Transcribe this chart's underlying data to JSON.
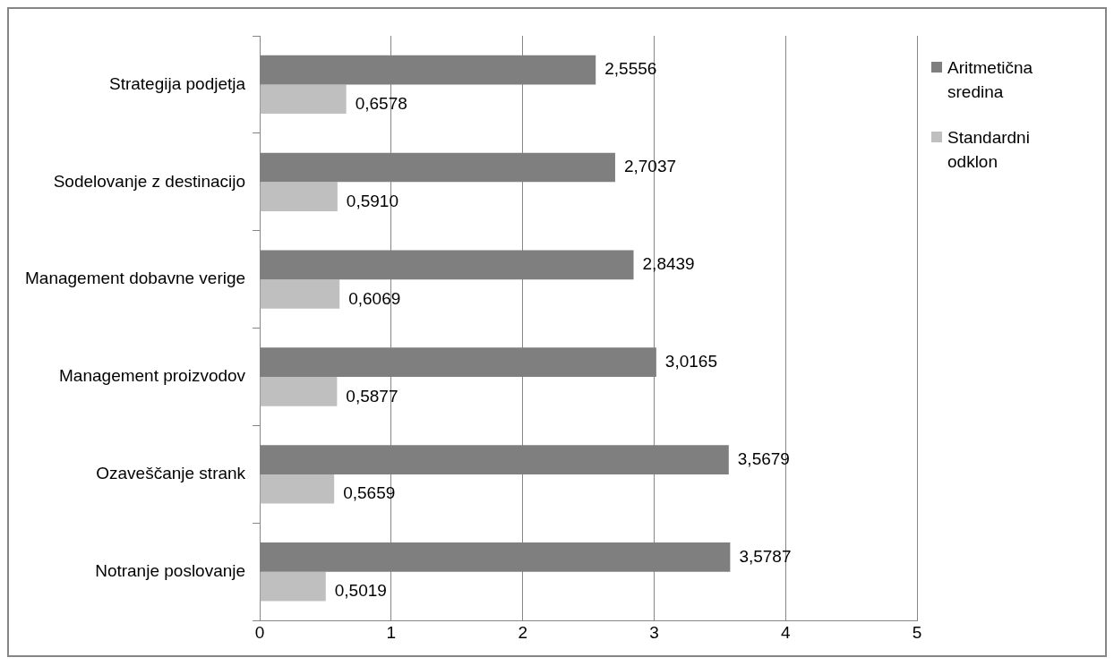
{
  "chart_data": {
    "type": "bar",
    "orientation": "horizontal",
    "categories": [
      "Strategija podjetja",
      "Sodelovanje z destinacijo",
      "Management dobavne verige",
      "Management proizvodov",
      "Ozaveščanje strank",
      "Notranje poslovanje"
    ],
    "series": [
      {
        "name": "Aritmetična sredina",
        "color": "#7f7f7f",
        "values": [
          2.5556,
          2.7037,
          2.8439,
          3.0165,
          3.5679,
          3.5787
        ],
        "value_labels": [
          "2,5556",
          "2,7037",
          "2,8439",
          "3,0165",
          "3,5679",
          "3,5787"
        ]
      },
      {
        "name": "Standardni odklon",
        "color": "#bfbfbf",
        "values": [
          0.6578,
          0.591,
          0.6069,
          0.5877,
          0.5659,
          0.5019
        ],
        "value_labels": [
          "0,6578",
          "0,5910",
          "0,6069",
          "0,5877",
          "0,5659",
          "0,5019"
        ]
      }
    ],
    "xlim": [
      0,
      5
    ],
    "xticks": [
      0,
      1,
      2,
      3,
      4,
      5
    ],
    "grid": "x",
    "legend": "right"
  }
}
